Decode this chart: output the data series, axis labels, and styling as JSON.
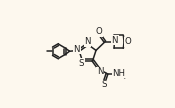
{
  "bg_color": "#fdf8ee",
  "line_color": "#222222",
  "line_width": 1.1,
  "font_size": 6.2,
  "font_family": "DejaVu Sans",
  "xlim": [
    0,
    10
  ],
  "ylim": [
    0,
    6.2
  ]
}
